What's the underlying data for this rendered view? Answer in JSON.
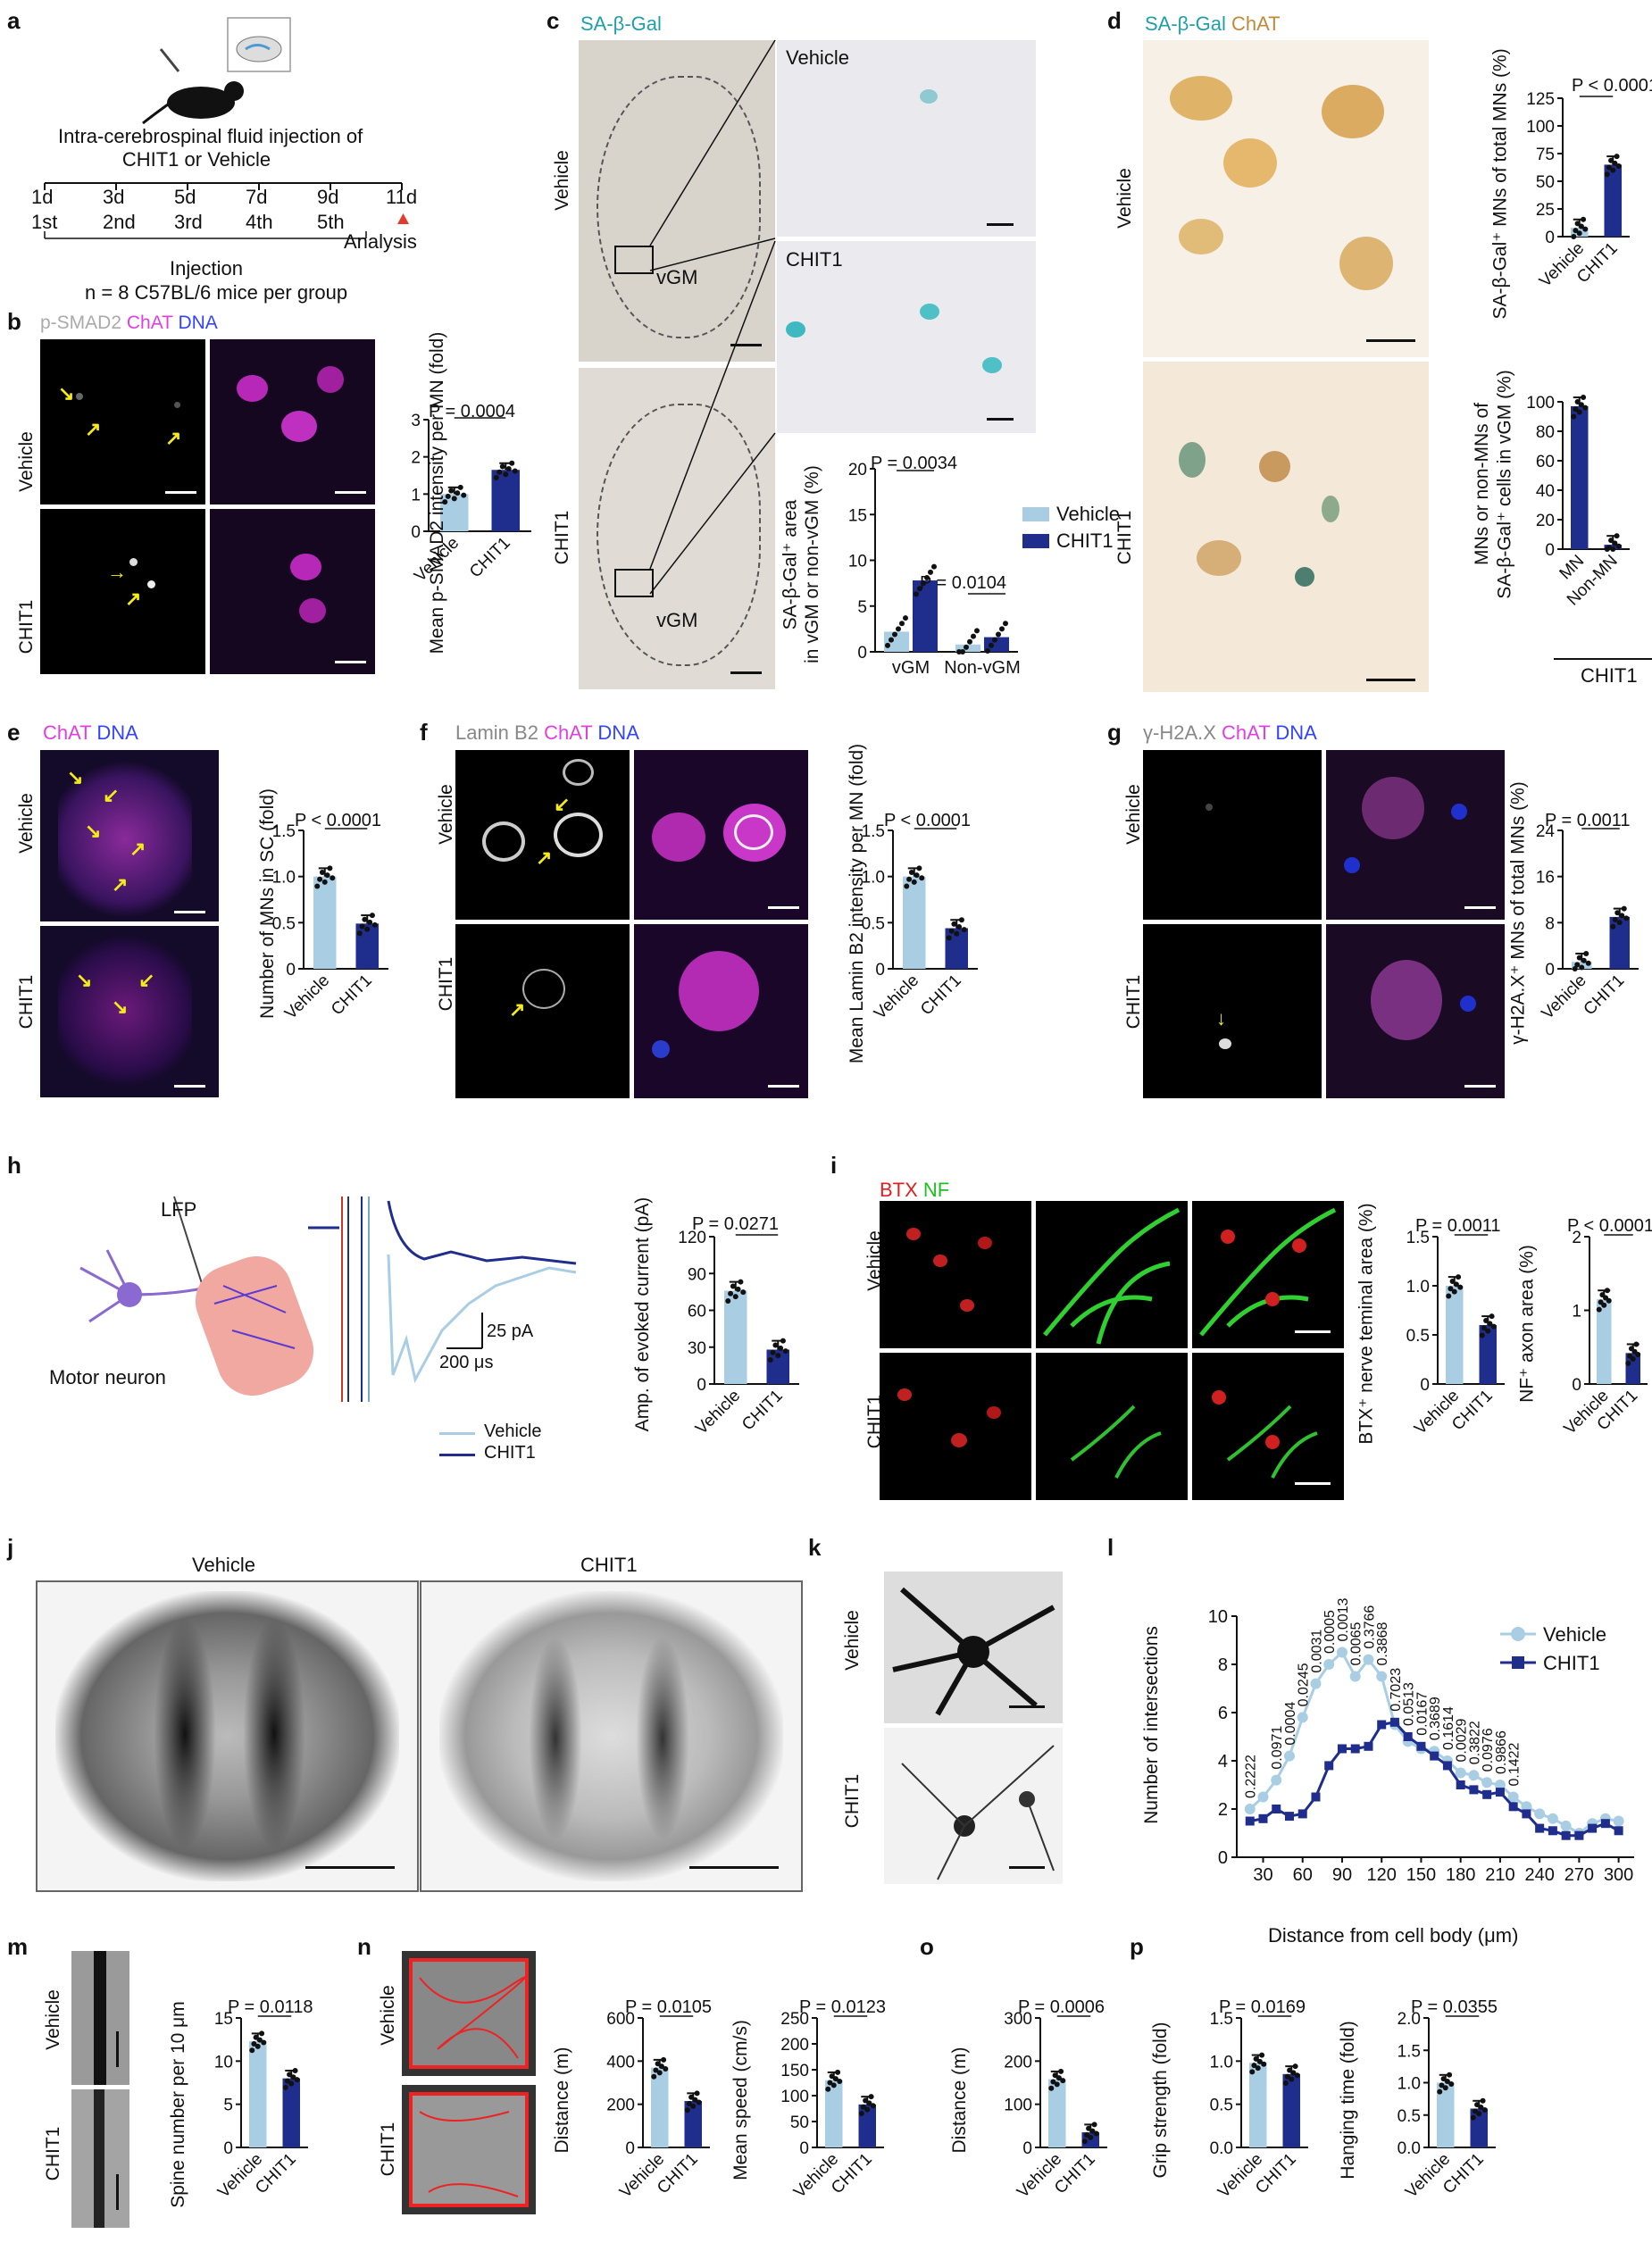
{
  "colors": {
    "vehicle": "#a9cde3",
    "chit1": "#1f2d8c",
    "arrow": "#f4ec18",
    "ihc_bg": "#f6f0e6"
  },
  "panels": {
    "a": {
      "label": "a",
      "title_line1": "Intra-cerebrospinal fluid injection of",
      "title_line2": "CHIT1 or Vehicle",
      "days": [
        "1d",
        "3d",
        "5d",
        "7d",
        "9d",
        "11d"
      ],
      "injections": [
        "1st",
        "2nd",
        "3rd",
        "4th",
        "5th"
      ],
      "analysis": "Analysis",
      "injection": "Injection",
      "n_text": "n = 8 C57BL/6 mice per group"
    },
    "b": {
      "label": "b",
      "stain": [
        "p-SMAD2",
        "ChAT",
        "DNA"
      ],
      "rows": [
        "Vehicle",
        "CHIT1"
      ],
      "ylabel": "Mean p-SMAD2 intensity per MN (fold)",
      "p": "P = 0.0004",
      "yticks": [
        "0",
        "1",
        "2",
        "3"
      ],
      "cats": [
        "Vehicle",
        "CHIT1"
      ]
    },
    "c": {
      "label": "c",
      "stain": "SA-β-Gal",
      "rows": [
        "Vehicle",
        "CHIT1"
      ],
      "region": "vGM",
      "ylabel1": "SA-β-Gal⁺ area",
      "ylabel2": "in vGM or non-vGM (%)",
      "p1": "P = 0.0034",
      "p2": "P = 0.0104",
      "yticks": [
        "0",
        "5",
        "10",
        "15",
        "20"
      ],
      "cats": [
        "vGM",
        "Non-vGM"
      ],
      "legend": [
        "Vehicle",
        "CHIT1"
      ]
    },
    "d": {
      "label": "d",
      "stain": [
        "SA-β-Gal",
        "ChAT"
      ],
      "rows": [
        "Vehicle",
        "CHIT1"
      ],
      "ylabel1": "SA-β-Gal⁺ MNs of total MNs (%)",
      "p1": "P < 0.0001",
      "yticks1": [
        "0",
        "25",
        "50",
        "75",
        "100",
        "125"
      ],
      "cats1": [
        "Vehicle",
        "CHIT1"
      ],
      "ylabel2a": "MNs or non-MNs of",
      "ylabel2b": "SA-β-Gal⁺ cells in vGM (%)",
      "yticks2": [
        "0",
        "20",
        "40",
        "60",
        "80",
        "100"
      ],
      "cats2": [
        "MN",
        "Non-MN"
      ],
      "group": "CHIT1"
    },
    "e": {
      "label": "e",
      "stain": [
        "ChAT",
        "DNA"
      ],
      "rows": [
        "Vehicle",
        "CHIT1"
      ],
      "ylabel": "Number of MNs in SC (fold)",
      "p": "P < 0.0001",
      "yticks": [
        "0",
        "0.5",
        "1.0",
        "1.5"
      ],
      "cats": [
        "Vehicle",
        "CHIT1"
      ]
    },
    "f": {
      "label": "f",
      "stain": [
        "Lamin B2",
        "ChAT",
        "DNA"
      ],
      "rows": [
        "Vehicle",
        "CHIT1"
      ],
      "ylabel": "Mean Lamin B2 intensity per MN (fold)",
      "p": "P < 0.0001",
      "yticks": [
        "0",
        "0.5",
        "1.0",
        "1.5"
      ],
      "cats": [
        "Vehicle",
        "CHIT1"
      ]
    },
    "g": {
      "label": "g",
      "stain": [
        "γ-H2A.X",
        "ChAT",
        "DNA"
      ],
      "rows": [
        "Vehicle",
        "CHIT1"
      ],
      "ylabel": "γ-H2A.X⁺ MNs of total MNs (%)",
      "p": "P = 0.0011",
      "yticks": [
        "0",
        "8",
        "16",
        "24"
      ],
      "cats": [
        "Vehicle",
        "CHIT1"
      ]
    },
    "h": {
      "label": "h",
      "lfp": "LFP",
      "neuron": "Motor neuron",
      "scale_y": "25 pA",
      "scale_x": "200 μs",
      "legend": [
        "Vehicle",
        "CHIT1"
      ],
      "ylabel": "Amp. of evoked current (pA)",
      "p": "P = 0.0271",
      "yticks": [
        "0",
        "30",
        "60",
        "90",
        "120"
      ],
      "cats": [
        "Vehicle",
        "CHIT1"
      ]
    },
    "i": {
      "label": "i",
      "stain": [
        "BTX",
        "NF"
      ],
      "rows": [
        "Vehicle",
        "CHIT1"
      ],
      "ylabel1": "BTX⁺ nerve teminal area (%)",
      "p1": "P = 0.0011",
      "yticks1": [
        "0",
        "0.5",
        "1.0",
        "1.5"
      ],
      "ylabel2": "NF⁺ axon area (%)",
      "p2": "P < 0.0001",
      "yticks2": [
        "0",
        "1",
        "2"
      ],
      "cats": [
        "Vehicle",
        "CHIT1"
      ]
    },
    "j": {
      "label": "j",
      "cols": [
        "Vehicle",
        "CHIT1"
      ]
    },
    "k": {
      "label": "k",
      "rows": [
        "Vehicle",
        "CHIT1"
      ]
    },
    "l": {
      "label": "l",
      "ylabel": "Number of intersections",
      "xlabel": "Distance from cell body (μm)",
      "legend": [
        "Vehicle",
        "CHIT1"
      ],
      "pvals": [
        "0.2222",
        "0.0971",
        "0.0004",
        "0.0245",
        "0.0031",
        "0.0005",
        "0.0013",
        "0.0065",
        "0.3766",
        "0.3868",
        "0.7023",
        "0.0513",
        "0.0167",
        "0.3689",
        "0.1614",
        "0.0029",
        "0.3822",
        "0.0976",
        "0.9866",
        "0.1422"
      ],
      "xticks": [
        "30",
        "60",
        "90",
        "120",
        "150",
        "180",
        "210",
        "240",
        "270",
        "300"
      ],
      "yticks": [
        "0",
        "2",
        "4",
        "6",
        "8",
        "10"
      ]
    },
    "m": {
      "label": "m",
      "rows": [
        "Vehicle",
        "CHIT1"
      ],
      "ylabel": "Spine number per 10 μm",
      "p": "P = 0.0118",
      "yticks": [
        "0",
        "5",
        "10",
        "15"
      ],
      "cats": [
        "Vehicle",
        "CHIT1"
      ]
    },
    "n": {
      "label": "n",
      "rows": [
        "Vehicle",
        "CHIT1"
      ],
      "ylabel1": "Distance (m)",
      "p1": "P = 0.0105",
      "yticks1": [
        "0",
        "200",
        "400",
        "600"
      ],
      "ylabel2": "Mean speed (cm/s)",
      "p2": "P = 0.0123",
      "yticks2": [
        "0",
        "50",
        "100",
        "150",
        "200",
        "250"
      ],
      "cats": [
        "Vehicle",
        "CHIT1"
      ]
    },
    "o": {
      "label": "o",
      "ylabel": "Distance (m)",
      "p": "P = 0.0006",
      "yticks": [
        "0",
        "100",
        "200",
        "300"
      ],
      "cats": [
        "Vehicle",
        "CHIT1"
      ]
    },
    "p": {
      "label": "p",
      "ylabel1": "Grip strength (fold)",
      "p1": "P = 0.0169",
      "yticks1": [
        "0.0",
        "0.5",
        "1.0",
        "1.5"
      ],
      "ylabel2": "Hanging time (fold)",
      "p2": "P = 0.0355",
      "yticks2": [
        "0.0",
        "0.5",
        "1.0",
        "1.5",
        "2.0"
      ],
      "cats": [
        "Vehicle",
        "CHIT1"
      ]
    }
  },
  "chart_data": [
    {
      "panel": "b",
      "type": "bar",
      "categories": [
        "Vehicle",
        "CHIT1"
      ],
      "values": [
        1.0,
        1.65
      ],
      "ylim": [
        0,
        3
      ]
    },
    {
      "panel": "c",
      "type": "bar",
      "categories": [
        "vGM",
        "Non-vGM"
      ],
      "series": [
        {
          "name": "Vehicle",
          "values": [
            2.2,
            0.8
          ]
        },
        {
          "name": "CHIT1",
          "values": [
            7.8,
            1.6
          ]
        }
      ],
      "ylim": [
        0,
        20
      ]
    },
    {
      "panel": "d1",
      "type": "bar",
      "categories": [
        "Vehicle",
        "CHIT1"
      ],
      "values": [
        8,
        65
      ],
      "ylim": [
        0,
        125
      ]
    },
    {
      "panel": "d2",
      "type": "bar",
      "categories": [
        "MN",
        "Non-MN"
      ],
      "values": [
        97,
        3
      ],
      "ylim": [
        0,
        100
      ]
    },
    {
      "panel": "e",
      "type": "bar",
      "categories": [
        "Vehicle",
        "CHIT1"
      ],
      "values": [
        1.0,
        0.49
      ],
      "ylim": [
        0,
        1.5
      ]
    },
    {
      "panel": "f",
      "type": "bar",
      "categories": [
        "Vehicle",
        "CHIT1"
      ],
      "values": [
        1.0,
        0.44
      ],
      "ylim": [
        0,
        1.5
      ]
    },
    {
      "panel": "g",
      "type": "bar",
      "categories": [
        "Vehicle",
        "CHIT1"
      ],
      "values": [
        1.2,
        9
      ],
      "ylim": [
        0,
        24
      ]
    },
    {
      "panel": "h",
      "type": "bar",
      "categories": [
        "Vehicle",
        "CHIT1"
      ],
      "values": [
        76,
        28
      ],
      "ylim": [
        0,
        120
      ]
    },
    {
      "panel": "i1",
      "type": "bar",
      "categories": [
        "Vehicle",
        "CHIT1"
      ],
      "values": [
        1.0,
        0.6
      ],
      "ylim": [
        0,
        1.5
      ]
    },
    {
      "panel": "i2",
      "type": "bar",
      "categories": [
        "Vehicle",
        "CHIT1"
      ],
      "values": [
        1.15,
        0.42
      ],
      "ylim": [
        0,
        2
      ]
    },
    {
      "panel": "l",
      "type": "line",
      "x": [
        20,
        30,
        40,
        50,
        60,
        70,
        80,
        90,
        100,
        110,
        120,
        130,
        140,
        150,
        160,
        170,
        180,
        190,
        200,
        210,
        220,
        230,
        240,
        250,
        260,
        270,
        280,
        290,
        300
      ],
      "series": [
        {
          "name": "Vehicle",
          "values": [
            2.0,
            2.5,
            3.2,
            4.2,
            5.8,
            7.2,
            8.0,
            8.5,
            7.5,
            8.2,
            7.5,
            5.5,
            4.8,
            4.5,
            4.4,
            4.0,
            3.5,
            3.4,
            3.1,
            3.0,
            2.5,
            2.1,
            1.8,
            1.6,
            1.3,
            1.0,
            1.4,
            1.6,
            1.5
          ]
        },
        {
          "name": "CHIT1",
          "values": [
            1.5,
            1.6,
            2.0,
            1.7,
            1.8,
            2.5,
            3.8,
            4.5,
            4.5,
            4.6,
            5.5,
            5.6,
            5.0,
            4.6,
            4.2,
            3.8,
            3.0,
            2.8,
            2.6,
            2.7,
            2.1,
            1.8,
            1.2,
            1.1,
            0.9,
            0.9,
            1.2,
            1.4,
            1.1
          ]
        }
      ],
      "ylim": [
        0,
        10
      ]
    },
    {
      "panel": "m",
      "type": "bar",
      "categories": [
        "Vehicle",
        "CHIT1"
      ],
      "values": [
        12.3,
        8
      ],
      "ylim": [
        0,
        15
      ]
    },
    {
      "panel": "n1",
      "type": "bar",
      "categories": [
        "Vehicle",
        "CHIT1"
      ],
      "values": [
        370,
        215
      ],
      "ylim": [
        0,
        600
      ]
    },
    {
      "panel": "n2",
      "type": "bar",
      "categories": [
        "Vehicle",
        "CHIT1"
      ],
      "values": [
        130,
        83
      ],
      "ylim": [
        0,
        250
      ]
    },
    {
      "panel": "o",
      "type": "bar",
      "categories": [
        "Vehicle",
        "CHIT1"
      ],
      "values": [
        158,
        35
      ],
      "ylim": [
        0,
        300
      ]
    },
    {
      "panel": "p1",
      "type": "bar",
      "categories": [
        "Vehicle",
        "CHIT1"
      ],
      "values": [
        0.98,
        0.85
      ],
      "ylim": [
        0,
        1.5
      ]
    },
    {
      "panel": "p2",
      "type": "bar",
      "categories": [
        "Vehicle",
        "CHIT1"
      ],
      "values": [
        1.0,
        0.6
      ],
      "ylim": [
        0,
        2
      ]
    }
  ]
}
